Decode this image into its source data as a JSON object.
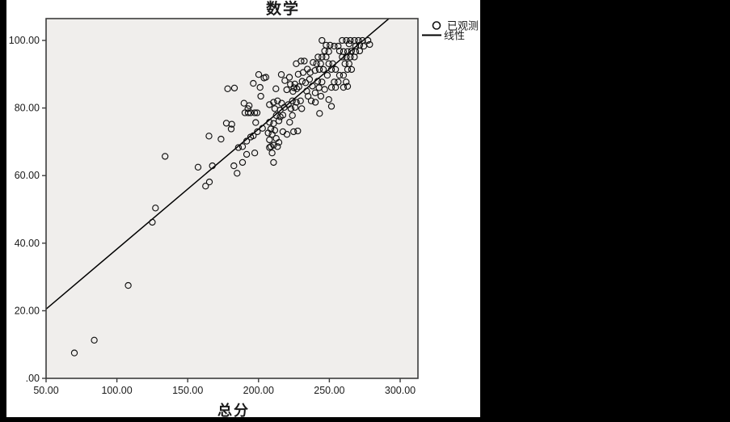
{
  "window": {
    "canvas_color": "#ffffff",
    "mask_color": "#000000"
  },
  "chart_data": {
    "type": "scatter",
    "title": "数学",
    "xlabel": "总分",
    "ylabel": "",
    "grid": false,
    "legend_position": "top-right-outside",
    "legend": [
      {
        "symbol": "circle",
        "label": "已观测"
      },
      {
        "symbol": "line",
        "label": "线性"
      }
    ],
    "plot_background": "#f0eeec",
    "frame_color": "#3c3c3c",
    "marker_color": "#111111",
    "line_color": "#000000",
    "x_tick_labels": [
      "50.00",
      "100.00",
      "150.00",
      "200.00",
      "250.00",
      "300.00"
    ],
    "x_tick_values": [
      50,
      100,
      150,
      200,
      250,
      300
    ],
    "y_tick_labels": [
      ".00",
      "20.00",
      "40.00",
      "60.00",
      "80.00",
      "100.00"
    ],
    "y_tick_values": [
      0,
      20,
      40,
      60,
      80,
      100
    ],
    "xlim": [
      50,
      312.5
    ],
    "ylim": [
      0,
      106.5
    ],
    "regression_line": {
      "x1": 50,
      "y1": 20.5,
      "x2": 295,
      "y2": 107.5
    },
    "points": [
      [
        70,
        7.5
      ],
      [
        84,
        11.3
      ],
      [
        108,
        27.5
      ],
      [
        125,
        46.2
      ],
      [
        127.2,
        50.4
      ],
      [
        134,
        65.7
      ],
      [
        157.3,
        62.5
      ],
      [
        162.6,
        56.9
      ],
      [
        165.3,
        58.1
      ],
      [
        165,
        71.7
      ],
      [
        167.4,
        62.9
      ],
      [
        173.5,
        70.8
      ],
      [
        177.3,
        75.5
      ],
      [
        181.1,
        75.2
      ],
      [
        178.2,
        85.7
      ],
      [
        183,
        85.9
      ],
      [
        182.6,
        62.9
      ],
      [
        184.9,
        60.7
      ],
      [
        180.7,
        73.8
      ],
      [
        185.8,
        68.3
      ],
      [
        188.7,
        68.6
      ],
      [
        191.6,
        70.2
      ],
      [
        194.4,
        71.4
      ],
      [
        196.3,
        71.8
      ],
      [
        199.2,
        73
      ],
      [
        188.7,
        63.9
      ],
      [
        191.6,
        66.3
      ],
      [
        197.3,
        66.7
      ],
      [
        189.7,
        81.4
      ],
      [
        193.4,
        80.7
      ],
      [
        192.5,
        79.8
      ],
      [
        190.4,
        78.6
      ],
      [
        192.7,
        78.6
      ],
      [
        194.4,
        78.6
      ],
      [
        197.3,
        78.6
      ],
      [
        199,
        78.6
      ],
      [
        196.3,
        87.3
      ],
      [
        200.1,
        89.9
      ],
      [
        203.9,
        88.9
      ],
      [
        201.1,
        86.1
      ],
      [
        201.6,
        83.5
      ],
      [
        202.8,
        74
      ],
      [
        198,
        75.7
      ],
      [
        206.8,
        72.6
      ],
      [
        207.7,
        81
      ],
      [
        207.7,
        75.8
      ],
      [
        207.7,
        70.6
      ],
      [
        207.7,
        68.3
      ],
      [
        208.7,
        73.8
      ],
      [
        209.6,
        72.2
      ],
      [
        210.6,
        81.7
      ],
      [
        210.6,
        75.4
      ],
      [
        210.6,
        69
      ],
      [
        210.6,
        63.9
      ],
      [
        211.5,
        79.8
      ],
      [
        211.5,
        73.4
      ],
      [
        212.5,
        77.8
      ],
      [
        212.5,
        71
      ],
      [
        213.4,
        82.1
      ],
      [
        213.4,
        68.6
      ],
      [
        214.4,
        76.2
      ],
      [
        214.4,
        69.8
      ],
      [
        215.3,
        79.4
      ],
      [
        215.3,
        77.4
      ],
      [
        216.3,
        81.4
      ],
      [
        217.2,
        77.9
      ],
      [
        217.2,
        73
      ],
      [
        218.2,
        80.2
      ],
      [
        220.1,
        72.2
      ],
      [
        221,
        81
      ],
      [
        222,
        75.8
      ],
      [
        222.9,
        79.8
      ],
      [
        223.9,
        82.1
      ],
      [
        223.9,
        77.8
      ],
      [
        224.8,
        73
      ],
      [
        225.8,
        80.2
      ],
      [
        226.7,
        81.7
      ],
      [
        227.7,
        73.2
      ],
      [
        229.6,
        82.1
      ],
      [
        230.5,
        79.8
      ],
      [
        237.2,
        82.1
      ],
      [
        240.1,
        81.7
      ],
      [
        243.1,
        78.4
      ],
      [
        249.6,
        82.5
      ],
      [
        251.5,
        80.5
      ],
      [
        208.7,
        68.6
      ],
      [
        209.6,
        66.7
      ],
      [
        205.2,
        89.1
      ],
      [
        212.3,
        85.7
      ],
      [
        216.1,
        89.9
      ],
      [
        218.6,
        88.1
      ],
      [
        219.9,
        85.4
      ],
      [
        221.8,
        89.1
      ],
      [
        224.3,
        84.9
      ],
      [
        225.6,
        87.1
      ],
      [
        226.6,
        93.1
      ],
      [
        230,
        93.9
      ],
      [
        232.3,
        93.9
      ],
      [
        230.8,
        87.9
      ],
      [
        233.2,
        87.5
      ],
      [
        225,
        86
      ],
      [
        227,
        85.7
      ],
      [
        228.5,
        86.3
      ],
      [
        239.9,
        91.1
      ],
      [
        241.8,
        87.9
      ],
      [
        242.7,
        86
      ],
      [
        234,
        85
      ],
      [
        236,
        88.5
      ],
      [
        238,
        86.5
      ],
      [
        236.5,
        90.5
      ],
      [
        234.5,
        91.5
      ],
      [
        238.5,
        93.5
      ],
      [
        231.5,
        90.5
      ],
      [
        228,
        90
      ],
      [
        222.5,
        87
      ],
      [
        235,
        83.5
      ],
      [
        240,
        84.5
      ],
      [
        244,
        83.5
      ],
      [
        259.1,
        100
      ],
      [
        262,
        100
      ],
      [
        264.8,
        100
      ],
      [
        267.7,
        100
      ],
      [
        270.5,
        100
      ],
      [
        273.4,
        100
      ],
      [
        277.2,
        100
      ],
      [
        244.8,
        100
      ],
      [
        263.9,
        99
      ],
      [
        268.6,
        98.3
      ],
      [
        271.4,
        98.6
      ],
      [
        274.3,
        98.3
      ],
      [
        247.7,
        98.6
      ],
      [
        250.5,
        98.6
      ],
      [
        253.4,
        98.3
      ],
      [
        256.2,
        98.3
      ],
      [
        278.5,
        98.8
      ],
      [
        246.7,
        96.9
      ],
      [
        249.6,
        96.7
      ],
      [
        257.2,
        96.9
      ],
      [
        260,
        96.7
      ],
      [
        262.9,
        96.7
      ],
      [
        265.7,
        96.9
      ],
      [
        268.6,
        96.7
      ],
      [
        271.4,
        96.9
      ],
      [
        242,
        95.1
      ],
      [
        244.8,
        95.1
      ],
      [
        247.7,
        95.1
      ],
      [
        259.1,
        95.1
      ],
      [
        262,
        95.1
      ],
      [
        264.8,
        95.1
      ],
      [
        267.7,
        95.1
      ],
      [
        241,
        93.1
      ],
      [
        243.9,
        93.1
      ],
      [
        249.6,
        93.1
      ],
      [
        252.4,
        93.1
      ],
      [
        261,
        93.1
      ],
      [
        263.9,
        93.1
      ],
      [
        242.9,
        91.4
      ],
      [
        245.8,
        91.4
      ],
      [
        251.5,
        91.4
      ],
      [
        254.4,
        91.4
      ],
      [
        262.9,
        91.4
      ],
      [
        265.7,
        91.4
      ],
      [
        248.6,
        89.7
      ],
      [
        257.2,
        89.7
      ],
      [
        260,
        89.7
      ],
      [
        244.8,
        87.7
      ],
      [
        253.4,
        87.7
      ],
      [
        256.2,
        87.7
      ],
      [
        261.9,
        87.7
      ],
      [
        251.5,
        86.1
      ],
      [
        254.4,
        86.1
      ],
      [
        260,
        86.1
      ],
      [
        246.7,
        85.5
      ],
      [
        262.9,
        86.4
      ]
    ]
  }
}
